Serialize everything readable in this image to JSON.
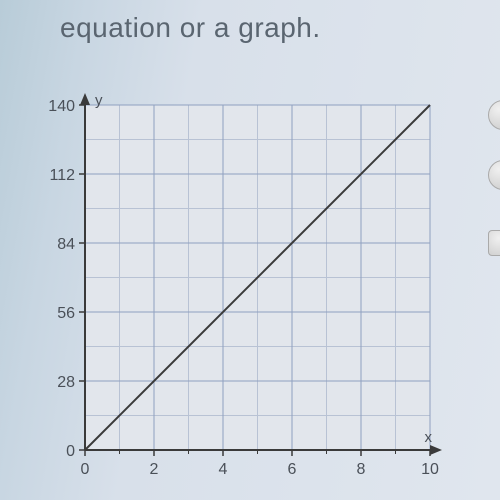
{
  "header": {
    "text": "equation or a graph."
  },
  "chart": {
    "type": "line",
    "xlabel": "x",
    "ylabel": "y",
    "xlim": [
      0,
      10
    ],
    "ylim": [
      0,
      140
    ],
    "xtick_step": 2,
    "ytick_step": 28,
    "xticks": [
      0,
      2,
      4,
      6,
      8,
      10
    ],
    "yticks": [
      0,
      28,
      56,
      84,
      112,
      140
    ],
    "minor_x_step": 1,
    "minor_y_step": 14,
    "line_points": [
      [
        0,
        0
      ],
      [
        10,
        140
      ]
    ],
    "background_color": "#e2e6ec",
    "grid_color_major": "#8fa0c0",
    "grid_color_minor": "#b8c2d4",
    "axis_color": "#3a3a3a",
    "line_color": "#3a3a3a",
    "line_width": 2,
    "tick_font_size": 16,
    "label_font_size": 15,
    "text_color": "#4a5058"
  }
}
